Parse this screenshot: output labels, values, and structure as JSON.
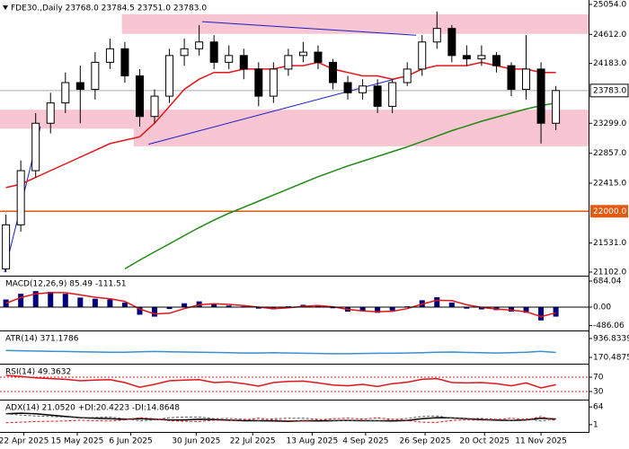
{
  "chart_data": [
    {
      "type": "candlestick",
      "title": "FDE30.,Daily  23768.0 23784.5 23751.0 23783.0",
      "xlim": [
        0,
        198
      ],
      "ylim": [
        21049,
        25120
      ],
      "x": [
        2,
        7,
        12,
        17,
        22,
        27,
        32,
        37,
        42,
        47,
        52,
        57,
        62,
        67,
        72,
        77,
        82,
        87,
        92,
        97,
        102,
        107,
        112,
        117,
        122,
        127,
        132,
        137,
        142,
        147,
        152,
        157,
        162,
        167,
        172,
        177,
        182,
        187
      ],
      "open": [
        21150,
        21800,
        22600,
        23300,
        23600,
        23900,
        23800,
        24200,
        24400,
        24000,
        23400,
        23700,
        24300,
        24400,
        24500,
        24200,
        24300,
        24100,
        23700,
        24100,
        24300,
        24350,
        24200,
        23900,
        23750,
        23850,
        23550,
        23900,
        24100,
        24500,
        24700,
        24300,
        24250,
        24300,
        24150,
        23800,
        24100,
        23300
      ],
      "high": [
        21950,
        22750,
        23450,
        23750,
        24050,
        24150,
        24350,
        24550,
        24500,
        24100,
        23800,
        24400,
        24550,
        24750,
        24600,
        24450,
        24400,
        24200,
        24200,
        24400,
        24500,
        24450,
        24250,
        24000,
        23950,
        23950,
        23950,
        24200,
        24600,
        24950,
        24750,
        24450,
        24450,
        24350,
        24200,
        24600,
        24200,
        23850
      ],
      "low": [
        21100,
        21700,
        22500,
        23150,
        23450,
        23300,
        23650,
        24100,
        23900,
        23250,
        23300,
        23600,
        24150,
        24300,
        24100,
        24100,
        23950,
        23550,
        23600,
        24000,
        24200,
        24100,
        23800,
        23650,
        23650,
        23450,
        23450,
        23850,
        24000,
        24400,
        24200,
        24150,
        24150,
        24050,
        23700,
        23650,
        23000,
        23200
      ],
      "close": [
        21800,
        22600,
        23300,
        23600,
        23900,
        23800,
        24200,
        24400,
        24000,
        23400,
        23700,
        24300,
        24400,
        24500,
        24200,
        24300,
        24100,
        23700,
        24100,
        24300,
        24350,
        24200,
        23900,
        23750,
        23850,
        23550,
        23900,
        24100,
        24500,
        24700,
        24300,
        24250,
        24300,
        24150,
        23800,
        24100,
        23300,
        23783
      ],
      "series": [
        {
          "color": "#e0161b",
          "values": [
            22350,
            22400,
            22500,
            22600,
            22700,
            22800,
            22900,
            23000,
            23050,
            23100,
            23300,
            23550,
            23800,
            23950,
            24050,
            24050,
            24100,
            24100,
            24100,
            24150,
            24150,
            24200,
            24100,
            24050,
            24000,
            24000,
            23950,
            24000,
            24100,
            24150,
            24150,
            24150,
            24200,
            24150,
            24100,
            24100,
            24050,
            24050
          ]
        },
        {
          "color": "#1f8a12",
          "values": [
            null,
            null,
            null,
            null,
            null,
            null,
            null,
            null,
            21150,
            21280,
            21400,
            21520,
            21640,
            21760,
            21870,
            21970,
            22060,
            22150,
            22240,
            22330,
            22420,
            22510,
            22590,
            22670,
            22740,
            22810,
            22880,
            22950,
            23030,
            23110,
            23190,
            23260,
            23330,
            23390,
            23450,
            23510,
            23560,
            23600
          ]
        }
      ],
      "zones": [
        {
          "from": 41,
          "low": 24620,
          "high": 24910
        },
        {
          "from": 0,
          "low": 23220,
          "high": 23500
        },
        {
          "from": 45,
          "low": 22960,
          "high": 23250
        }
      ],
      "zone_color": "#f7c6d2",
      "trendlines": [
        {
          "x": [
            50,
            136
          ],
          "y": [
            22990,
            23990
          ]
        },
        {
          "x": [
            68,
            140
          ],
          "y": [
            24800,
            24600
          ]
        },
        {
          "x": [
            1.5,
            13.6
          ],
          "y": [
            21100,
            23250
          ]
        }
      ],
      "trend_color": "#1c1cc8",
      "last_price": {
        "value": 23783,
        "label": "23783.0"
      },
      "level": {
        "value": 22000,
        "label": "22000.0"
      },
      "level_color": "#e05a10",
      "yticks": [
        {
          "value": 25054,
          "label": "25054.0"
        },
        {
          "value": 24612,
          "label": "24612.0"
        },
        {
          "value": 24183,
          "label": "24183.0"
        },
        {
          "value": 23299,
          "label": "23299.0"
        },
        {
          "value": 22857,
          "label": "22857.0"
        },
        {
          "value": 22415,
          "label": "22415.0"
        },
        {
          "value": 21531,
          "label": "21531.0"
        },
        {
          "value": 21102,
          "label": "21102.0"
        }
      ]
    },
    {
      "type": "macd",
      "title": "MACD(12,26,9) 85.49 -111.51",
      "xlim": [
        0,
        198
      ],
      "ylim": [
        -614,
        802
      ],
      "x": [
        2,
        7,
        12,
        17,
        22,
        27,
        32,
        37,
        42,
        47,
        52,
        57,
        62,
        67,
        72,
        77,
        82,
        87,
        92,
        97,
        102,
        107,
        112,
        117,
        122,
        127,
        132,
        137,
        142,
        147,
        152,
        157,
        162,
        167,
        172,
        177,
        182,
        187
      ],
      "values": [
        200,
        350,
        420,
        400,
        350,
        250,
        220,
        200,
        120,
        -200,
        -250,
        -50,
        100,
        150,
        80,
        40,
        20,
        -40,
        -60,
        20,
        60,
        50,
        -30,
        -120,
        -100,
        -150,
        -90,
        20,
        180,
        260,
        120,
        -40,
        -60,
        -80,
        -120,
        -150,
        -350,
        -250
      ],
      "color": "#00007a",
      "series": [
        {
          "color": "#e0161b",
          "values": [
            100,
            250,
            350,
            380,
            380,
            320,
            260,
            220,
            150,
            -50,
            -180,
            -160,
            -40,
            60,
            90,
            70,
            40,
            0,
            -40,
            -20,
            20,
            40,
            10,
            -60,
            -100,
            -120,
            -110,
            -40,
            80,
            180,
            170,
            60,
            -10,
            -50,
            -80,
            -120,
            -250,
            -150
          ]
        }
      ],
      "yticks": [
        684.04,
        {
          "value": 0,
          "label": "0.00"
        },
        -486.06
      ]
    },
    {
      "type": "line",
      "title": "ATR(14) 371.1786",
      "xlim": [
        0,
        198
      ],
      "ylim": [
        -85,
        1229
      ],
      "x": [
        2,
        7,
        12,
        17,
        22,
        27,
        32,
        37,
        42,
        47,
        52,
        57,
        62,
        67,
        72,
        77,
        82,
        87,
        92,
        97,
        102,
        107,
        112,
        117,
        122,
        127,
        132,
        137,
        142,
        147,
        152,
        157,
        162,
        167,
        172,
        177,
        182,
        187
      ],
      "series": [
        {
          "color": "#3a8fd0",
          "values": [
            450,
            440,
            430,
            420,
            410,
            400,
            390,
            380,
            380,
            400,
            410,
            400,
            390,
            380,
            370,
            360,
            350,
            350,
            360,
            350,
            340,
            330,
            320,
            320,
            330,
            340,
            340,
            350,
            360,
            380,
            390,
            370,
            360,
            350,
            360,
            380,
            420,
            371
          ]
        }
      ],
      "yticks": [
        936.8339,
        170.4875
      ]
    },
    {
      "type": "line",
      "title": "RSI(14) 49.3632",
      "xlim": [
        0,
        198
      ],
      "ylim": [
        7.5,
        105
      ],
      "x": [
        2,
        7,
        12,
        17,
        22,
        27,
        32,
        37,
        42,
        47,
        52,
        57,
        62,
        67,
        72,
        77,
        82,
        87,
        92,
        97,
        102,
        107,
        112,
        117,
        122,
        127,
        132,
        137,
        142,
        147,
        152,
        157,
        162,
        167,
        172,
        177,
        182,
        187
      ],
      "series": [
        {
          "color": "#e0161b",
          "values": [
            75,
            72,
            68,
            66,
            64,
            60,
            62,
            63,
            55,
            42,
            50,
            60,
            62,
            63,
            55,
            57,
            52,
            45,
            55,
            58,
            59,
            54,
            48,
            46,
            50,
            44,
            52,
            56,
            64,
            66,
            55,
            54,
            55,
            52,
            46,
            54,
            40,
            49
          ]
        }
      ],
      "yticks": [
        70,
        30
      ]
    },
    {
      "type": "line",
      "title": "ADX(14) 21.0520 +DI:20.4223 -DI:14.8648",
      "xlim": [
        0,
        198
      ],
      "ylim": [
        -25,
        87
      ],
      "x": [
        2,
        7,
        12,
        17,
        22,
        27,
        32,
        37,
        42,
        47,
        52,
        57,
        62,
        67,
        72,
        77,
        82,
        87,
        92,
        97,
        102,
        107,
        112,
        117,
        122,
        127,
        132,
        137,
        142,
        147,
        152,
        157,
        162,
        167,
        172,
        177,
        182,
        187
      ],
      "series": [
        {
          "color": "#000000",
          "values": [
            40,
            42,
            40,
            35,
            30,
            26,
            24,
            22,
            20,
            22,
            20,
            18,
            18,
            20,
            19,
            17,
            15,
            15,
            14,
            13,
            15,
            14,
            15,
            16,
            15,
            15,
            14,
            16,
            22,
            26,
            25,
            22,
            19,
            17,
            16,
            18,
            24,
            21
          ]
        },
        {
          "color": "#555555",
          "dashed": true,
          "values": [
            40,
            35,
            32,
            30,
            28,
            25,
            27,
            28,
            22,
            15,
            18,
            26,
            28,
            28,
            22,
            23,
            20,
            16,
            22,
            24,
            24,
            20,
            16,
            15,
            17,
            14,
            19,
            23,
            30,
            32,
            24,
            22,
            23,
            20,
            16,
            22,
            14,
            20
          ]
        },
        {
          "color": "#e0161b",
          "dashed": true,
          "values": [
            8,
            10,
            12,
            13,
            14,
            17,
            15,
            14,
            18,
            26,
            22,
            15,
            13,
            12,
            17,
            16,
            18,
            24,
            18,
            15,
            15,
            18,
            22,
            24,
            21,
            25,
            20,
            16,
            10,
            9,
            16,
            18,
            17,
            19,
            24,
            18,
            30,
            15
          ]
        }
      ],
      "yticks": [
        64,
        1
      ],
      "xticks": [
        {
          "value": 8,
          "label": "22 Apr 2025"
        },
        {
          "value": 26,
          "label": "15 May 2025"
        },
        {
          "value": 44,
          "label": "6 Jun 2025"
        },
        {
          "value": 66,
          "label": "30 Jun 2025"
        },
        {
          "value": 85,
          "label": "22 Jul 2025"
        },
        {
          "value": 105,
          "label": "13 Aug 2025"
        },
        {
          "value": 123,
          "label": "4 Sep 2025"
        },
        {
          "value": 143,
          "label": "26 Sep 2025"
        },
        {
          "value": 163,
          "label": "20 Oct 2025"
        },
        {
          "value": 182,
          "label": "11 Nov 2025"
        }
      ]
    }
  ]
}
